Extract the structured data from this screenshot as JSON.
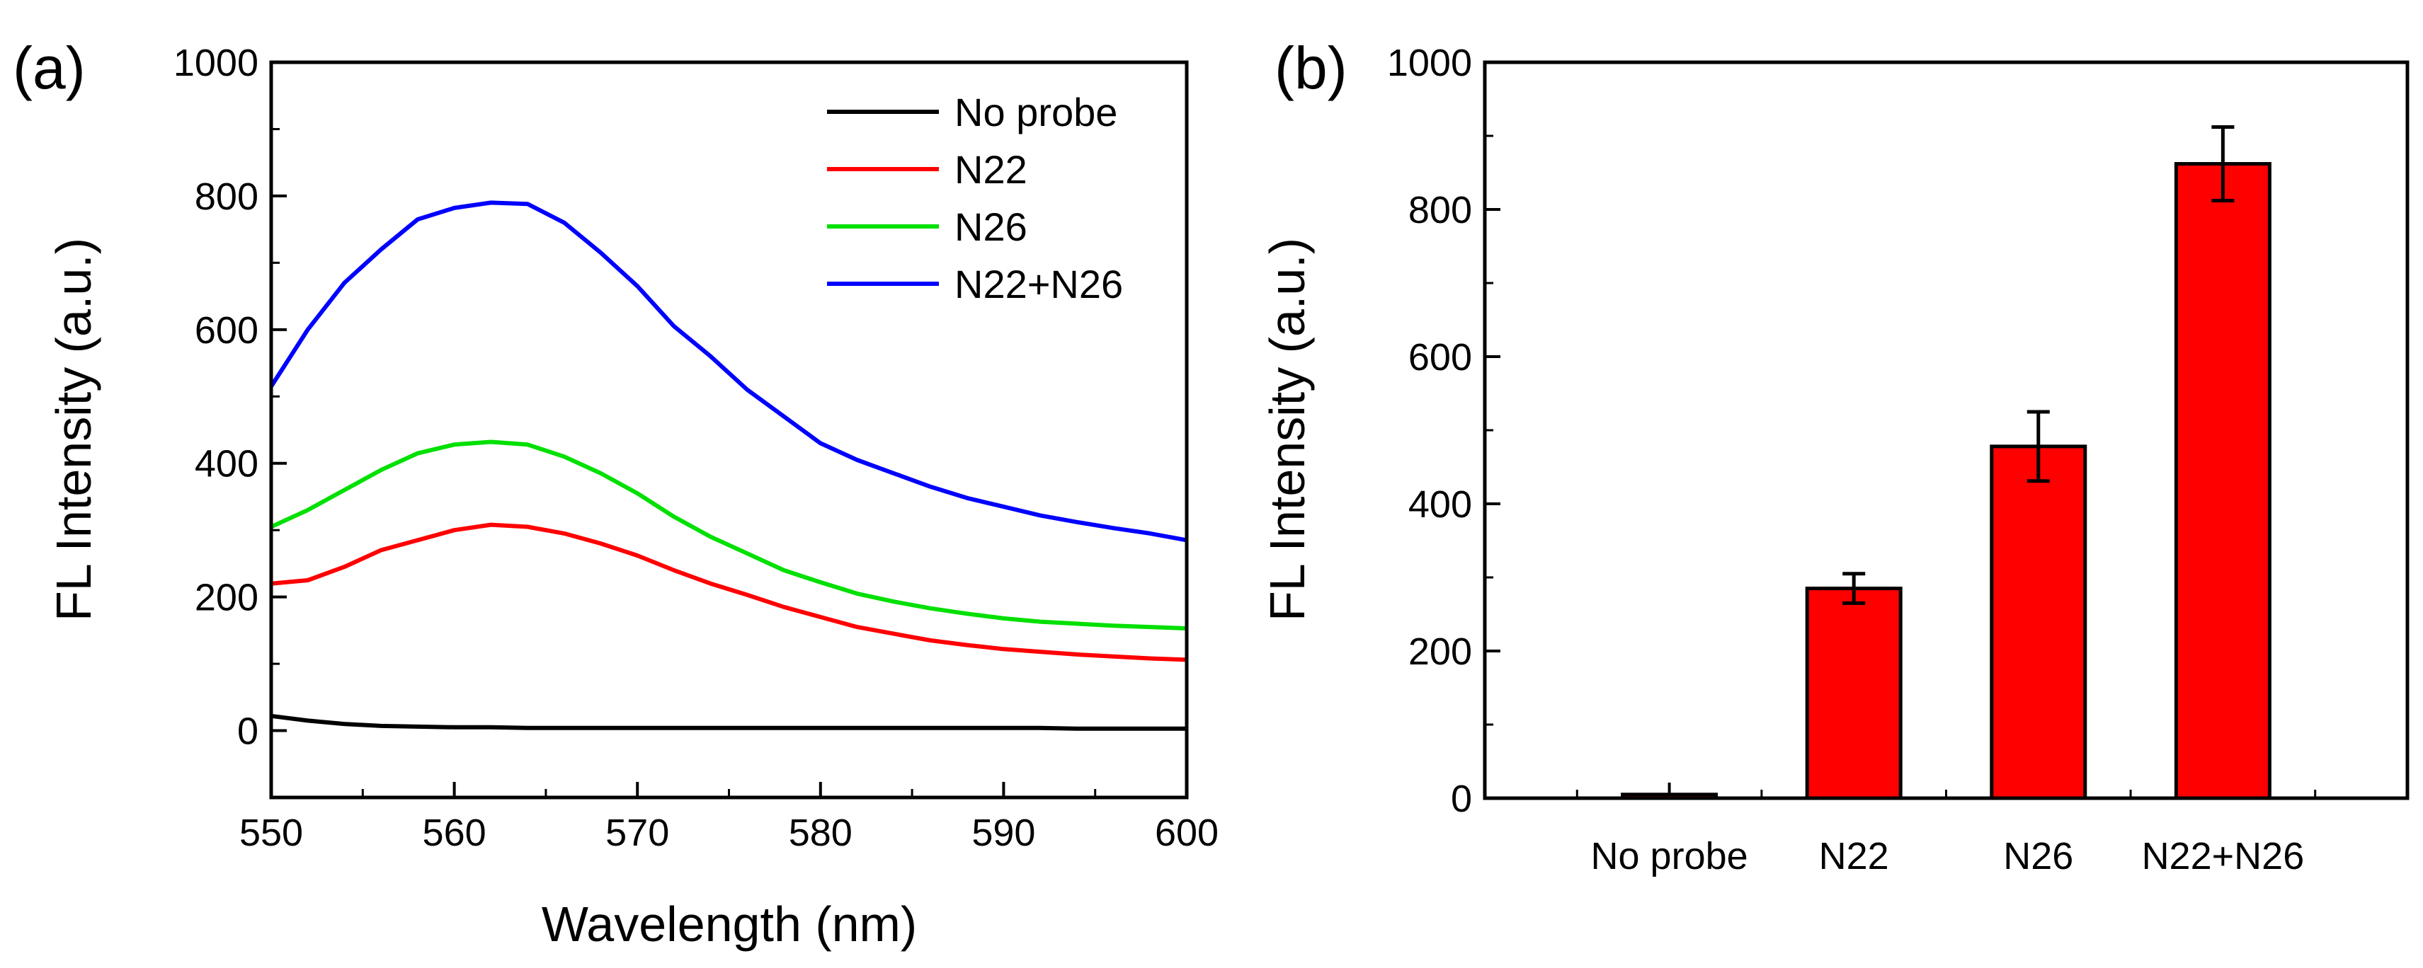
{
  "chart_data": [
    {
      "type": "line",
      "panel_label": "(a)",
      "xlabel": "Wavelength (nm)",
      "ylabel": "FL Intensity (a.u.)",
      "xlim": [
        550,
        600
      ],
      "ylim": [
        -100,
        1000
      ],
      "xticks": [
        550,
        560,
        570,
        580,
        590,
        600
      ],
      "yticks": [
        0,
        200,
        400,
        600,
        800,
        1000
      ],
      "x": [
        550,
        552,
        554,
        556,
        558,
        560,
        562,
        564,
        566,
        568,
        570,
        572,
        574,
        576,
        578,
        580,
        582,
        584,
        586,
        588,
        590,
        592,
        594,
        596,
        598,
        600
      ],
      "series": [
        {
          "name": "No probe",
          "color": "#000000",
          "values": [
            22,
            15,
            10,
            7,
            6,
            5,
            5,
            4,
            4,
            4,
            4,
            4,
            4,
            4,
            4,
            4,
            4,
            4,
            4,
            4,
            4,
            4,
            3,
            3,
            3,
            3
          ]
        },
        {
          "name": "N22",
          "color": "#ff0000",
          "values": [
            220,
            225,
            245,
            270,
            285,
            300,
            308,
            305,
            295,
            280,
            262,
            240,
            220,
            203,
            185,
            170,
            155,
            145,
            135,
            128,
            122,
            118,
            114,
            111,
            108,
            106
          ]
        },
        {
          "name": "N26",
          "color": "#00e000",
          "values": [
            305,
            330,
            360,
            390,
            415,
            428,
            432,
            428,
            410,
            385,
            355,
            320,
            290,
            265,
            240,
            222,
            205,
            193,
            183,
            175,
            168,
            163,
            160,
            157,
            155,
            153
          ]
        },
        {
          "name": "N22+N26",
          "color": "#0000ff",
          "values": [
            515,
            600,
            670,
            720,
            765,
            782,
            790,
            788,
            760,
            715,
            665,
            605,
            560,
            510,
            470,
            430,
            405,
            385,
            365,
            348,
            335,
            322,
            312,
            303,
            295,
            285
          ]
        }
      ],
      "legend_position": "top-right"
    },
    {
      "type": "bar",
      "panel_label": "(b)",
      "xlabel": "",
      "ylabel": "FL Intensity (a.u.)",
      "ylim": [
        0,
        1000
      ],
      "yticks": [
        0,
        200,
        400,
        600,
        800,
        1000
      ],
      "categories": [
        "No probe",
        "N22",
        "N26",
        "N22+N26"
      ],
      "values": [
        5,
        285,
        478,
        862
      ],
      "errors": [
        2,
        20,
        47,
        50
      ],
      "bar_color": "#ff0000"
    }
  ]
}
